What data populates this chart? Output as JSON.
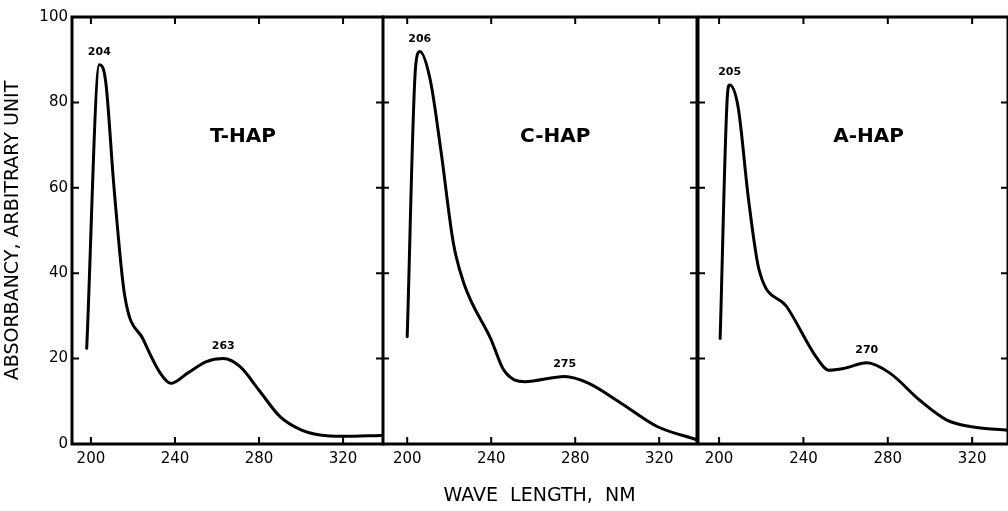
{
  "chart_data": [
    {
      "type": "line",
      "title": "T-HAP",
      "ylabel": "ABSORBANCY, ARBITRARY UNIT",
      "xlim": [
        191,
        339
      ],
      "xticks": [
        200,
        240,
        280,
        320
      ],
      "ylim": [
        0,
        100
      ],
      "yticks": [
        0,
        20,
        40,
        60,
        80,
        100
      ],
      "grid": false,
      "legend": false,
      "marker": "none",
      "line_style": "solid",
      "series": [
        {
          "color": "#000000",
          "x": [
            198,
            204,
            207,
            211,
            216,
            225,
            233,
            238,
            246,
            255,
            263,
            271,
            280,
            290,
            300,
            309,
            320,
            338
          ],
          "values": [
            22.4,
            88.8,
            85,
            60,
            35,
            24.4,
            16.6,
            14.2,
            16.6,
            19.3,
            20,
            18.1,
            12.6,
            6.4,
            3.3,
            2.1,
            1.8,
            2
          ]
        }
      ],
      "annotations": [
        {
          "text": "204",
          "x": 204,
          "y": 88.8
        },
        {
          "text": "263",
          "x": 263,
          "y": 20
        }
      ]
    },
    {
      "type": "line",
      "title": "C-HAP",
      "xlabel": "WAVE  LENGTH,  NM",
      "xlim": [
        188,
        338
      ],
      "xticks": [
        200,
        240,
        280,
        320
      ],
      "ylim": [
        0,
        100
      ],
      "yticks": [
        0,
        20,
        40,
        60,
        80,
        100
      ],
      "tick_labels": "x",
      "grid": false,
      "legend": false,
      "marker": "none",
      "line_style": "solid",
      "series": [
        {
          "color": "#000000",
          "x": [
            200,
            204,
            206,
            211,
            216,
            222,
            227,
            240,
            246,
            256,
            275,
            286,
            302,
            319,
            338
          ],
          "values": [
            25.1,
            88.4,
            91.9,
            85.2,
            68.9,
            47,
            37.6,
            24.4,
            17.3,
            14.6,
            15.8,
            14.3,
            9.5,
            4.1,
            1
          ]
        }
      ],
      "annotations": [
        {
          "text": "206",
          "x": 206,
          "y": 91.9
        },
        {
          "text": "275",
          "x": 275,
          "y": 15.8
        }
      ]
    },
    {
      "type": "line",
      "title": "A-HAP",
      "xlim": [
        190,
        337
      ],
      "xticks": [
        200,
        240,
        280,
        320
      ],
      "ylim": [
        0,
        100
      ],
      "yticks": [
        0,
        20,
        40,
        60,
        80,
        100
      ],
      "tick_labels": "x",
      "grid": false,
      "legend": false,
      "marker": "none",
      "line_style": "solid",
      "series": [
        {
          "color": "#000000",
          "x": [
            200.5,
            204,
            205,
            209,
            214,
            219,
            232,
            246,
            252,
            259,
            270,
            281,
            295,
            308,
            319,
            337
          ],
          "values": [
            24.7,
            82,
            84.1,
            79,
            57.1,
            40.7,
            32.2,
            20.4,
            17.3,
            17.7,
            19,
            16.6,
            10.3,
            5.6,
            4.1,
            3.2
          ]
        }
      ],
      "annotations": [
        {
          "text": "205",
          "x": 205,
          "y": 84.1
        },
        {
          "text": "270",
          "x": 270,
          "y": 19
        }
      ]
    }
  ]
}
